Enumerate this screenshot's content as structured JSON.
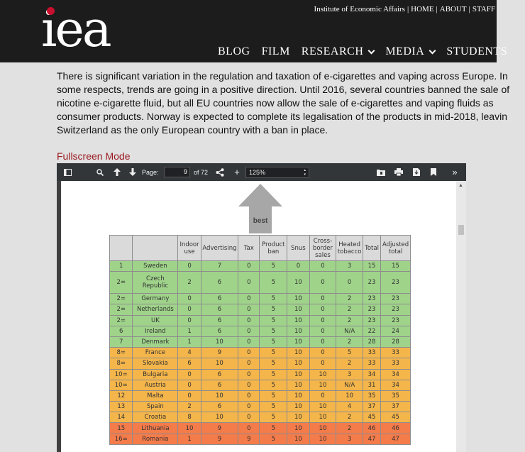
{
  "header": {
    "logo_text": "iea",
    "top_links": [
      "Institute of Economic Affairs",
      "HOME",
      "ABOUT",
      "STAFF"
    ],
    "nav": [
      {
        "label": "BLOG",
        "dropdown": false
      },
      {
        "label": "FILM",
        "dropdown": false
      },
      {
        "label": "RESEARCH",
        "dropdown": true
      },
      {
        "label": "MEDIA",
        "dropdown": true
      },
      {
        "label": "STUDENTS",
        "dropdown": false
      }
    ]
  },
  "article": {
    "lines": [
      "There is significant variation in the regulation and taxation of e-cigarettes and vaping across Europe. In",
      "some respects, trends are going in a positive direction. Until 2016, several countries banned the sale of",
      "nicotine e-cigarette fluid, but all EU countries now allow the sale of e-cigarettes and vaping fluids as",
      "consumer products. Norway is expected to complete its legalisation of the products in mid-2018, leavin",
      "Switzerland as the only European country with a ban in place."
    ],
    "fullscreen_link": "Fullscreen Mode"
  },
  "viewer": {
    "page_label": "Page:",
    "page_number": "9",
    "page_total": "of 72",
    "zoom": "125%",
    "icons": {
      "sidebar": "sidebar-toggle-icon",
      "search": "search-icon",
      "prev": "arrow-up-icon",
      "next": "arrow-down-icon",
      "share": "share-icon",
      "zoom_in": "plus-icon",
      "open": "open-file-icon",
      "print": "print-icon",
      "download": "download-icon",
      "bookmark": "bookmark-icon",
      "more": "double-chevron-right-icon"
    }
  },
  "document": {
    "arrow_label": "best",
    "columns": [
      "",
      "",
      "Indoor use",
      "Advertising",
      "Tax",
      "Product ban",
      "Snus",
      "Cross-border sales",
      "Heated tobacco",
      "Total",
      "Adjusted total"
    ],
    "rows": [
      {
        "band": "g",
        "cells": [
          "1",
          "Sweden",
          "0",
          "7",
          "0",
          "5",
          "0",
          "0",
          "3",
          "15",
          "15"
        ]
      },
      {
        "band": "g",
        "tall": true,
        "cells": [
          "2=",
          "Czech Republic",
          "2",
          "6",
          "0",
          "5",
          "10",
          "0",
          "0",
          "23",
          "23"
        ]
      },
      {
        "band": "g",
        "cells": [
          "2=",
          "Germany",
          "0",
          "6",
          "0",
          "5",
          "10",
          "0",
          "2",
          "23",
          "23"
        ]
      },
      {
        "band": "g",
        "cells": [
          "2=",
          "Netherlands",
          "0",
          "6",
          "0",
          "5",
          "10",
          "0",
          "2",
          "23",
          "23"
        ]
      },
      {
        "band": "g",
        "cells": [
          "2=",
          "UK",
          "0",
          "6",
          "0",
          "5",
          "10",
          "0",
          "2",
          "23",
          "23"
        ]
      },
      {
        "band": "g",
        "cells": [
          "6",
          "Ireland",
          "1",
          "6",
          "0",
          "5",
          "10",
          "0",
          "N/A",
          "22",
          "24"
        ]
      },
      {
        "band": "g",
        "cells": [
          "7",
          "Denmark",
          "1",
          "10",
          "0",
          "5",
          "10",
          "0",
          "2",
          "28",
          "28"
        ]
      },
      {
        "band": "y",
        "cells": [
          "8=",
          "France",
          "4",
          "9",
          "0",
          "5",
          "10",
          "0",
          "5",
          "33",
          "33"
        ]
      },
      {
        "band": "y",
        "cells": [
          "8=",
          "Slovakia",
          "6",
          "10",
          "0",
          "5",
          "10",
          "0",
          "2",
          "33",
          "33"
        ]
      },
      {
        "band": "y",
        "cells": [
          "10=",
          "Bulgaria",
          "0",
          "6",
          "0",
          "5",
          "10",
          "10",
          "3",
          "34",
          "34"
        ]
      },
      {
        "band": "y",
        "cells": [
          "10=",
          "Austria",
          "0",
          "6",
          "0",
          "5",
          "10",
          "10",
          "N/A",
          "31",
          "34"
        ]
      },
      {
        "band": "y",
        "cells": [
          "12",
          "Malta",
          "0",
          "10",
          "0",
          "5",
          "10",
          "0",
          "10",
          "35",
          "35"
        ]
      },
      {
        "band": "y",
        "cells": [
          "13",
          "Spain",
          "2",
          "6",
          "0",
          "5",
          "10",
          "10",
          "4",
          "37",
          "37"
        ]
      },
      {
        "band": "y",
        "cells": [
          "14",
          "Croatia",
          "8",
          "10",
          "0",
          "5",
          "10",
          "10",
          "2",
          "45",
          "45"
        ]
      },
      {
        "band": "r",
        "cells": [
          "15",
          "Lithuania",
          "10",
          "9",
          "0",
          "5",
          "10",
          "10",
          "2",
          "46",
          "46"
        ]
      },
      {
        "band": "r",
        "cells": [
          "16=",
          "Romania",
          "1",
          "9",
          "9",
          "5",
          "10",
          "10",
          "3",
          "47",
          "47"
        ]
      }
    ]
  }
}
